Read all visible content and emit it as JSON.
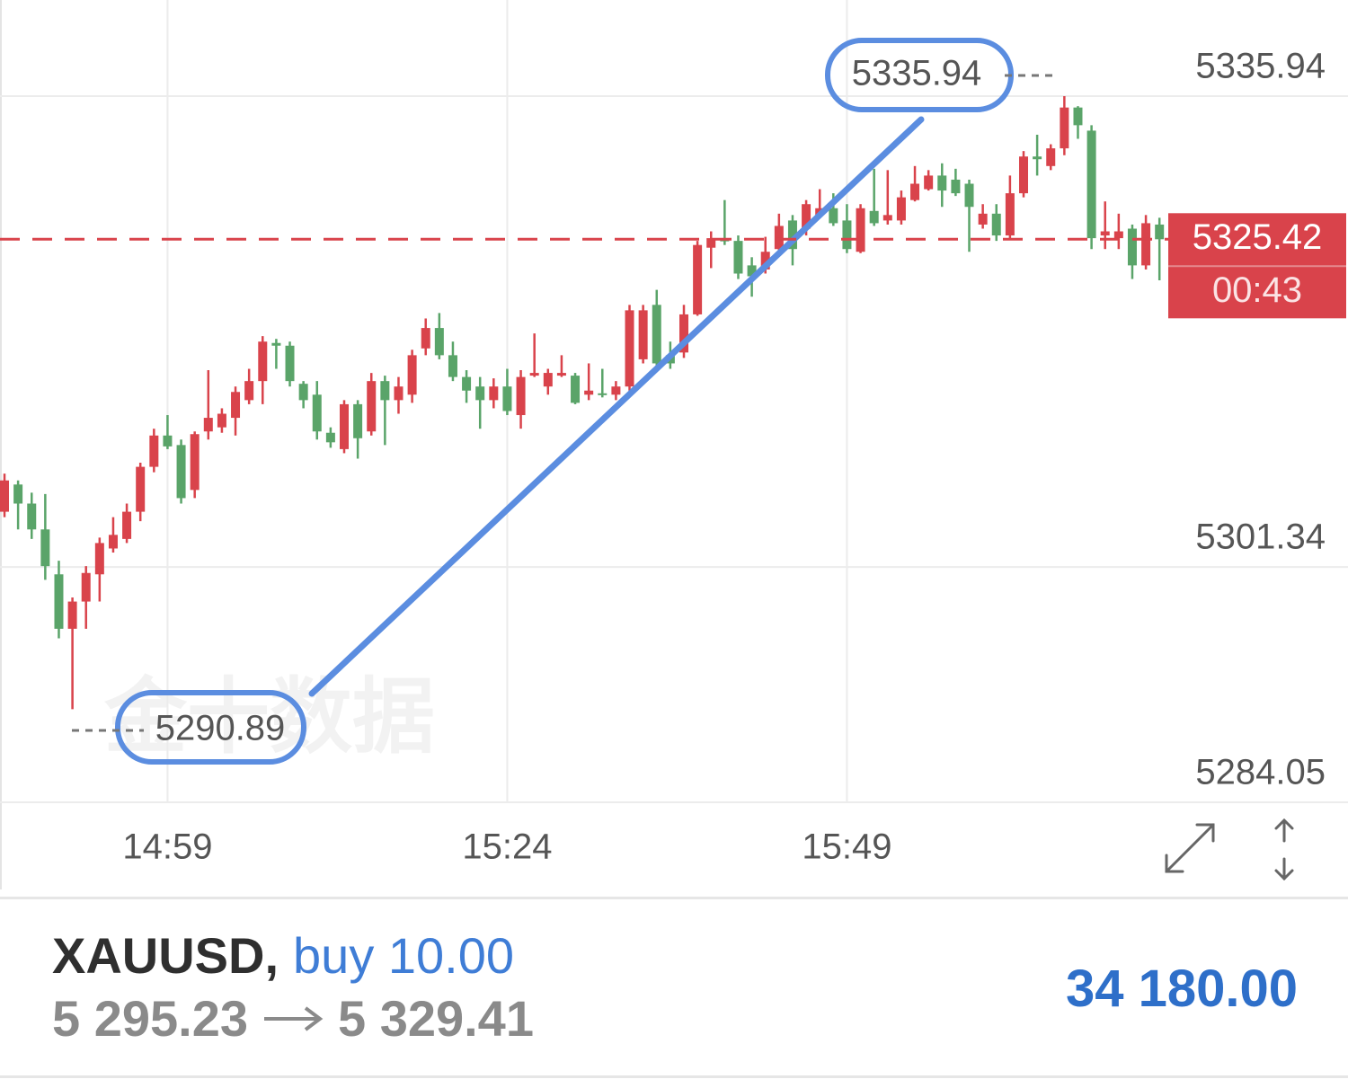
{
  "chart_data": {
    "type": "candlestick",
    "categories": [
      null,
      null,
      null,
      null,
      null,
      null,
      null,
      null,
      null,
      null,
      null,
      null,
      "14:59",
      null,
      null,
      null,
      null,
      null,
      null,
      null,
      null,
      null,
      null,
      null,
      null,
      null,
      null,
      null,
      null,
      null,
      null,
      null,
      null,
      null,
      null,
      null,
      null,
      "15:24",
      null,
      null,
      null,
      null,
      null,
      null,
      null,
      null,
      null,
      null,
      null,
      null,
      null,
      null,
      null,
      null,
      null,
      null,
      null,
      null,
      null,
      null,
      null,
      null,
      "15:49",
      null,
      null,
      null,
      null,
      null,
      null,
      null,
      null,
      null,
      null,
      null,
      null,
      null,
      null,
      null,
      null,
      null,
      null,
      null,
      null,
      null,
      null,
      null
    ],
    "open": [
      5305.4,
      5307.4,
      5306.0,
      5304.1,
      5300.8,
      5296.8,
      5298.8,
      5300.8,
      5302.7,
      5303.4,
      5305.4,
      5308.7,
      5311.0,
      5310.3,
      5307.0,
      5311.3,
      5311.6,
      5312.3,
      5313.6,
      5315.0,
      5317.8,
      5317.6,
      5314.8,
      5314.0,
      5311.2,
      5310.0,
      5313.3,
      5311.3,
      5315.0,
      5313.6,
      5314.0,
      5317.4,
      5318.9,
      5316.9,
      5315.3,
      5314.6,
      5313.6,
      5314.6,
      5312.5,
      5315.4,
      5314.6,
      5315.4,
      5315.4,
      5314.0,
      5314.1,
      5314.0,
      5314.6,
      5316.6,
      5320.6,
      5316.9,
      5317.1,
      5319.9,
      5324.8,
      5325.4,
      5325.3,
      5323.5,
      5323.2,
      5324.7,
      5326.8,
      5326.2,
      5327.2,
      5327.7,
      5326.8,
      5324.5,
      5327.5,
      5326.8,
      5326.8,
      5328.3,
      5329.1,
      5330.1,
      5329.8,
      5329.5,
      5326.5,
      5327.3,
      5325.7,
      5328.8,
      5331.5,
      5330.8,
      5332.1,
      5335.1,
      5333.4,
      5325.7,
      5325.5,
      5326.2,
      5323.5,
      5326.5
    ],
    "high": [
      5308.2,
      5307.7,
      5306.8,
      5306.7,
      5301.8,
      5299.1,
      5301.4,
      5303.5,
      5305.0,
      5306.0,
      5309.0,
      5311.5,
      5312.5,
      5310.7,
      5311.3,
      5315.8,
      5313.0,
      5314.6,
      5315.9,
      5318.3,
      5318.1,
      5317.9,
      5315.0,
      5315.0,
      5311.6,
      5313.6,
      5313.6,
      5315.6,
      5315.4,
      5315.3,
      5317.3,
      5319.6,
      5320.0,
      5317.9,
      5315.8,
      5315.3,
      5315.2,
      5315.9,
      5315.8,
      5318.5,
      5315.9,
      5316.9,
      5315.6,
      5316.3,
      5315.9,
      5315.0,
      5320.6,
      5320.6,
      5321.7,
      5317.9,
      5320.6,
      5325.3,
      5326.0,
      5328.3,
      5325.7,
      5324.1,
      5325.6,
      5327.3,
      5327.2,
      5328.3,
      5329.1,
      5328.8,
      5328.0,
      5328.0,
      5330.6,
      5330.5,
      5329.0,
      5330.8,
      5330.5,
      5331.0,
      5330.6,
      5329.8,
      5328.0,
      5328.0,
      5330.1,
      5331.9,
      5333.1,
      5332.4,
      5335.94,
      5335.2,
      5333.8,
      5328.2,
      5327.3,
      5326.5,
      5327.2,
      5327.0
    ],
    "low": [
      5305.0,
      5304.1,
      5303.4,
      5300.4,
      5296.1,
      5290.89,
      5296.8,
      5298.8,
      5302.4,
      5303.1,
      5304.7,
      5308.3,
      5310.0,
      5306.0,
      5306.4,
      5310.7,
      5311.2,
      5311.0,
      5313.3,
      5313.3,
      5315.9,
      5314.6,
      5313.0,
      5310.7,
      5310.1,
      5309.7,
      5309.3,
      5311.0,
      5310.3,
      5312.6,
      5313.4,
      5316.9,
      5316.6,
      5315.0,
      5313.4,
      5311.5,
      5313.0,
      5312.5,
      5311.5,
      5315.3,
      5314.0,
      5315.3,
      5313.3,
      5313.6,
      5313.8,
      5313.6,
      5314.3,
      5316.3,
      5315.9,
      5315.9,
      5316.7,
      5319.8,
      5323.3,
      5325.0,
      5322.5,
      5321.2,
      5322.9,
      5324.4,
      5323.5,
      5325.7,
      5327.0,
      5326.4,
      5324.4,
      5324.4,
      5326.4,
      5326.5,
      5326.5,
      5328.2,
      5329.0,
      5327.8,
      5328.6,
      5324.5,
      5326.2,
      5325.3,
      5325.5,
      5328.5,
      5330.1,
      5330.5,
      5331.6,
      5332.8,
      5324.7,
      5324.7,
      5324.7,
      5322.5,
      5323.2,
      5322.4
    ],
    "close": [
      5307.7,
      5306.0,
      5304.1,
      5301.4,
      5296.8,
      5298.8,
      5300.9,
      5303.1,
      5303.7,
      5305.4,
      5308.7,
      5311.0,
      5310.2,
      5306.4,
      5311.1,
      5312.3,
      5312.6,
      5314.2,
      5315.0,
      5317.9,
      5317.6,
      5315.0,
      5313.6,
      5311.3,
      5310.5,
      5313.3,
      5310.8,
      5315.0,
      5313.6,
      5314.6,
      5316.9,
      5318.9,
      5316.9,
      5315.3,
      5314.3,
      5313.6,
      5314.6,
      5312.8,
      5315.3,
      5315.6,
      5315.6,
      5315.6,
      5313.4,
      5314.3,
      5314.0,
      5314.6,
      5320.2,
      5320.2,
      5316.3,
      5316.3,
      5319.9,
      5325.0,
      5325.5,
      5325.3,
      5322.9,
      5322.7,
      5324.5,
      5326.4,
      5324.7,
      5328.0,
      5327.7,
      5326.6,
      5324.7,
      5327.7,
      5326.6,
      5327.2,
      5328.5,
      5329.5,
      5330.1,
      5329.0,
      5328.8,
      5327.8,
      5327.3,
      5325.7,
      5328.8,
      5331.5,
      5331.3,
      5332.1,
      5335.1,
      5333.8,
      5325.5,
      5326.0,
      5326.0,
      5323.5,
      5326.6,
      5325.42
    ],
    "up_color": "#d9434b",
    "down_color": "#5aa469",
    "ylim": [
      5284.05,
      5343.0
    ],
    "yticks": [
      5335.94,
      5301.34,
      5284.05
    ],
    "grid": true,
    "high_label": 5335.94,
    "low_label": 5290.89,
    "last_price": 5325.42,
    "countdown": "00:43",
    "watermark": "金十数据"
  },
  "position": {
    "symbol": "XAUUSD,",
    "side": "buy 10.00",
    "open_price": "5 295.23",
    "current_price": "5 329.41",
    "profit": "34 180.00"
  }
}
